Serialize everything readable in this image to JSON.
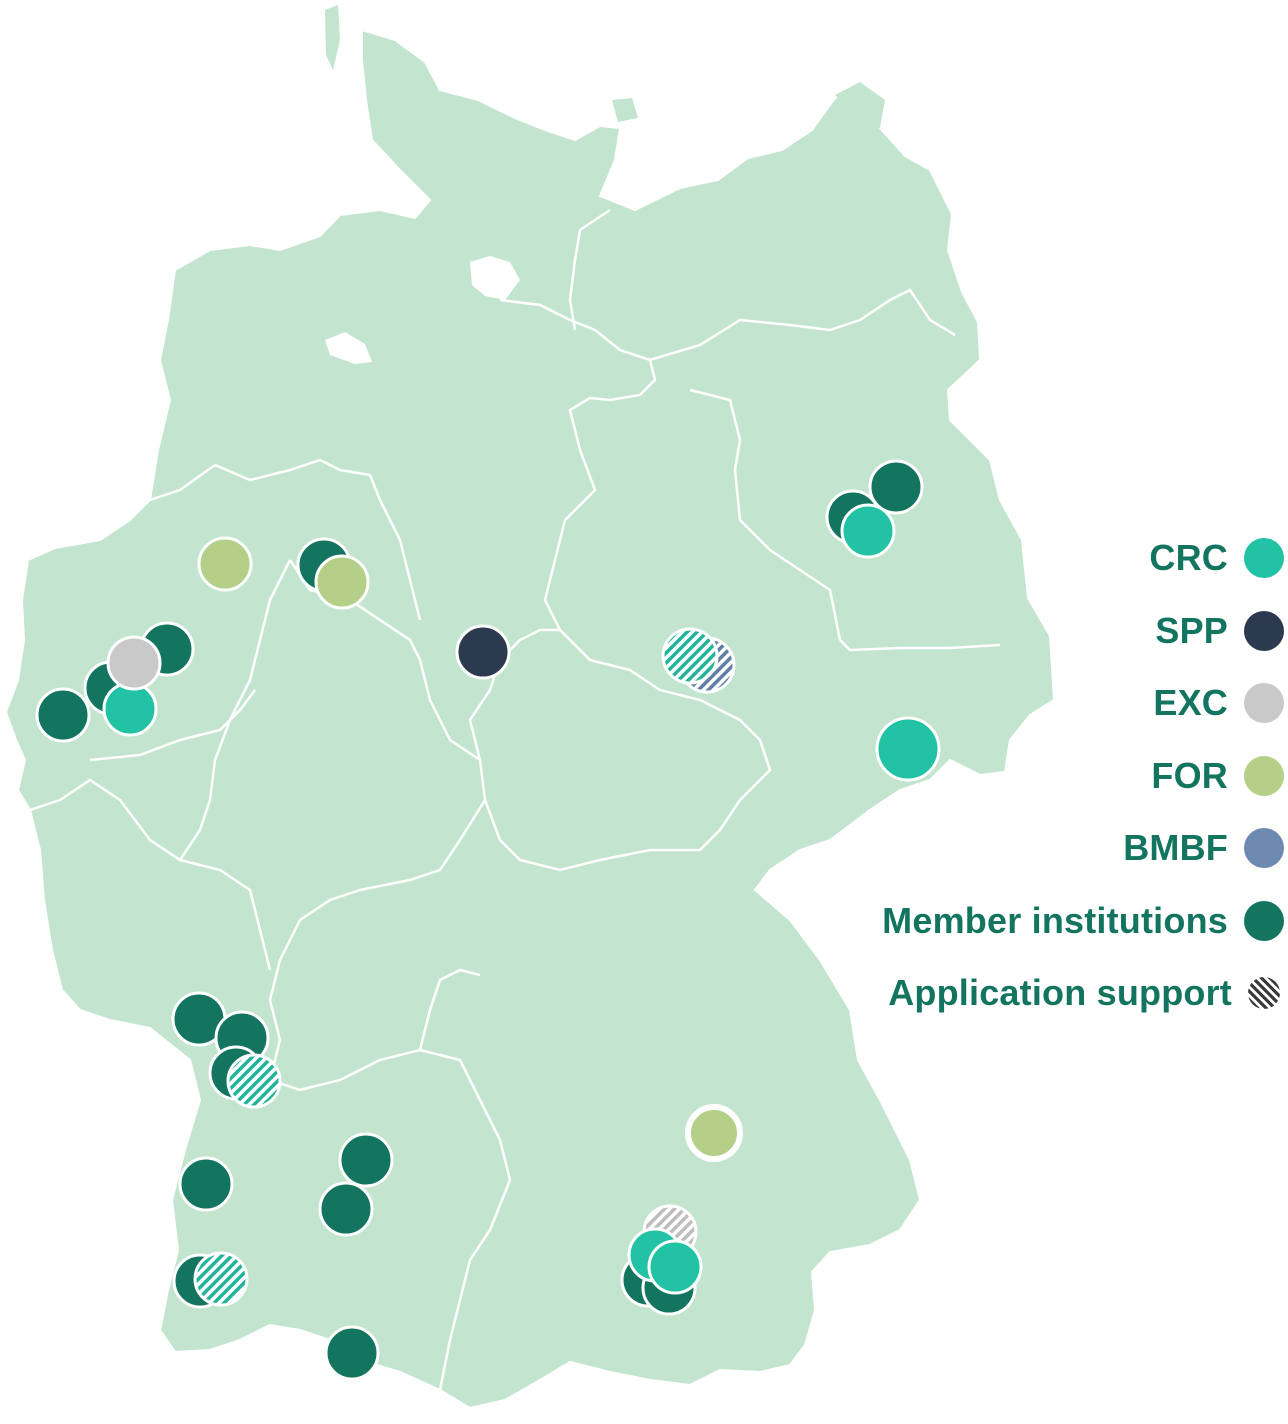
{
  "colors": {
    "land": "#c3e5d0",
    "border": "#ffffff",
    "crc": "#22c2a5",
    "spp": "#2b3a4e",
    "exc": "#c9c9c9",
    "for": "#b4cf88",
    "bmbf": "#6d8bb0",
    "member": "#137560",
    "legend_text": "#137560"
  },
  "legend": [
    {
      "label": "CRC",
      "color": "#22c2a5",
      "style": "solid"
    },
    {
      "label": "SPP",
      "color": "#2b3a4e",
      "style": "solid"
    },
    {
      "label": "EXC",
      "color": "#c9c9c9",
      "style": "solid"
    },
    {
      "label": "FOR",
      "color": "#b4cf88",
      "style": "solid"
    },
    {
      "label": "BMBF",
      "color": "#6d8bb0",
      "style": "solid"
    },
    {
      "label": "Member institutions",
      "color": "#137560",
      "style": "solid"
    },
    {
      "label": "Application support",
      "color": "#3a3a3a",
      "style": "hatched"
    }
  ],
  "marker_icons": {
    "crc": "circle",
    "spp": "circle",
    "exc": "circle",
    "for": "circle",
    "bmbf": "circle",
    "member": "circle",
    "application_support": "hatched-circle"
  }
}
